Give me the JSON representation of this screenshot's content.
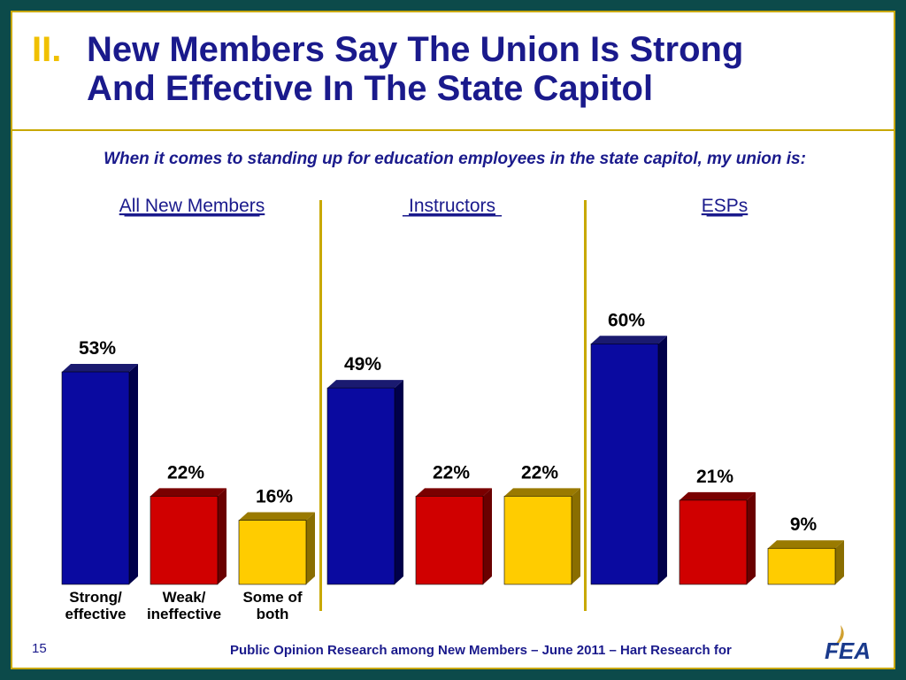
{
  "slide": {
    "title_number": "II.",
    "title_line1": "New Members Say The Union Is Strong",
    "title_line2": "And Effective In The State Capitol",
    "question": "When it comes to standing up for education employees in the state capitol, my union is:",
    "footer": "Public Opinion Research among New Members – June 2011 – Hart Research for",
    "page_number": "15",
    "logo_text": "FEA"
  },
  "colors": {
    "strong": "#0a0aa0",
    "weak": "#d00000",
    "both": "#ffcc00",
    "title": "#1a1a8c",
    "accent": "#c8a800",
    "border": "#0c4a4a"
  },
  "chart_data": {
    "type": "bar",
    "categories": [
      "Strong/ effective",
      "Weak/ ineffective",
      "Some of both"
    ],
    "category_label_lines": [
      [
        "Strong/",
        "effective"
      ],
      [
        "Weak/",
        "ineffective"
      ],
      [
        "Some of",
        "both"
      ]
    ],
    "ylim": [
      0,
      70
    ],
    "groups": [
      {
        "name": "All New Members",
        "values": [
          53,
          22,
          16
        ],
        "labels": [
          "53%",
          "22%",
          "16%"
        ]
      },
      {
        "name": "Instructors",
        "values": [
          49,
          22,
          22
        ],
        "labels": [
          "49%",
          "22%",
          "22%"
        ]
      },
      {
        "name": "ESPs",
        "values": [
          60,
          21,
          9
        ],
        "labels": [
          "60%",
          "21%",
          "9%"
        ]
      }
    ]
  }
}
